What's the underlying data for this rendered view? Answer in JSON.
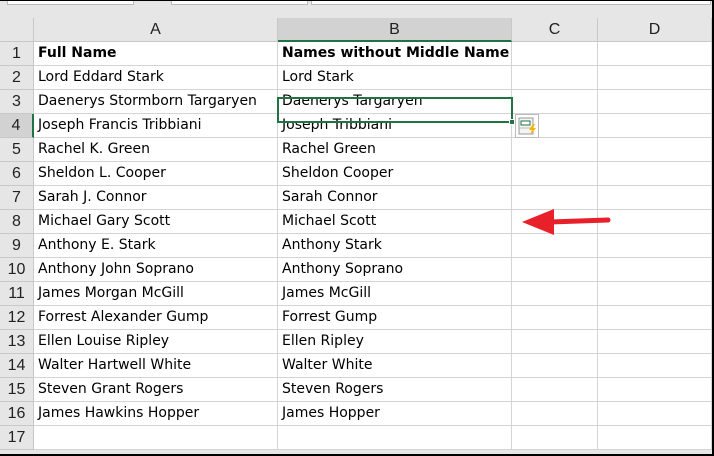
{
  "columns": [
    "A",
    "B",
    "C",
    "D"
  ],
  "rows": [
    [
      "Full Name",
      "Names without Middle Name"
    ],
    [
      "Lord Eddard Stark",
      "Lord Stark"
    ],
    [
      "Daenerys Stormborn Targaryen",
      "Daenerys Targaryen"
    ],
    [
      "Joseph Francis Tribbiani",
      "Joseph Tribbiani"
    ],
    [
      "Rachel K. Green",
      "Rachel Green"
    ],
    [
      "Sheldon L. Cooper",
      "Sheldon Cooper"
    ],
    [
      "Sarah J. Connor",
      "Sarah Connor"
    ],
    [
      "Michael Gary Scott",
      "Michael Scott"
    ],
    [
      "Anthony E. Stark",
      "Anthony Stark"
    ],
    [
      "Anthony John Soprano",
      "Anthony Soprano"
    ],
    [
      "James Morgan McGill",
      "James McGill"
    ],
    [
      "Forrest Alexander Gump",
      "Forrest Gump"
    ],
    [
      "Ellen Louise Ripley",
      "Ellen Ripley"
    ],
    [
      "Walter Hartwell White",
      "Walter White"
    ],
    [
      "Steven Grant Rogers",
      "Steven Rogers"
    ],
    [
      "James Hawkins Hopper",
      "James Hopper"
    ],
    [
      "",
      ""
    ]
  ],
  "active_cell": "B4",
  "icons": {
    "flash_fill": "flash-fill-options-icon",
    "annotation": "red-arrow-left"
  },
  "colors": {
    "selection": "#217346",
    "arrow": "#e8202a"
  }
}
